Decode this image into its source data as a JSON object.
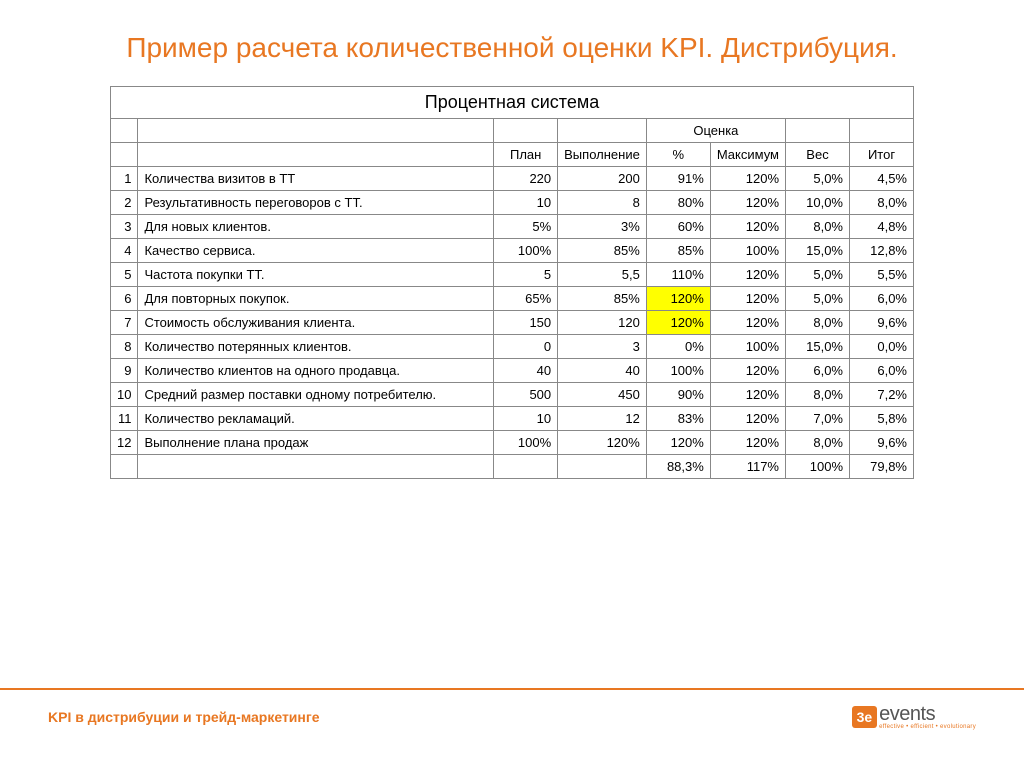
{
  "title": "Пример расчета количественной оценки KPI. Дистрибуция.",
  "table": {
    "main_title": "Процентная система",
    "group_header": "Оценка",
    "headers": {
      "plan": "План",
      "exec": "Выполнение",
      "pct": "%",
      "max": "Максимум",
      "weight": "Вес",
      "total": "Итог"
    },
    "rows": [
      {
        "n": "1",
        "name": "Количества визитов в ТТ",
        "plan": "220",
        "exec": "200",
        "pct": "91%",
        "max": "120%",
        "weight": "5,0%",
        "total": "4,5%",
        "hl": false
      },
      {
        "n": "2",
        "name": "Результативность переговоров с ТТ.",
        "plan": "10",
        "exec": "8",
        "pct": "80%",
        "max": "120%",
        "weight": "10,0%",
        "total": "8,0%",
        "hl": false
      },
      {
        "n": "3",
        "name": "Для новых клиентов.",
        "plan": "5%",
        "exec": "3%",
        "pct": "60%",
        "max": "120%",
        "weight": "8,0%",
        "total": "4,8%",
        "hl": false
      },
      {
        "n": "4",
        "name": "Качество сервиса.",
        "plan": "100%",
        "exec": "85%",
        "pct": "85%",
        "max": "100%",
        "weight": "15,0%",
        "total": "12,8%",
        "hl": false
      },
      {
        "n": "5",
        "name": "Частота покупки ТТ.",
        "plan": "5",
        "exec": "5,5",
        "pct": "110%",
        "max": "120%",
        "weight": "5,0%",
        "total": "5,5%",
        "hl": false
      },
      {
        "n": "6",
        "name": "Для повторных покупок.",
        "plan": "65%",
        "exec": "85%",
        "pct": "120%",
        "max": "120%",
        "weight": "5,0%",
        "total": "6,0%",
        "hl": true
      },
      {
        "n": "7",
        "name": "Стоимость обслуживания клиента.",
        "plan": "150",
        "exec": "120",
        "pct": "120%",
        "max": "120%",
        "weight": "8,0%",
        "total": "9,6%",
        "hl": true
      },
      {
        "n": "8",
        "name": "Количество потерянных клиентов.",
        "plan": "0",
        "exec": "3",
        "pct": "0%",
        "max": "100%",
        "weight": "15,0%",
        "total": "0,0%",
        "hl": false
      },
      {
        "n": "9",
        "name": "Количество клиентов на одного продавца.",
        "plan": "40",
        "exec": "40",
        "pct": "100%",
        "max": "120%",
        "weight": "6,0%",
        "total": "6,0%",
        "hl": false
      },
      {
        "n": "10",
        "name": "Средний размер поставки одному потребителю.",
        "plan": "500",
        "exec": "450",
        "pct": "90%",
        "max": "120%",
        "weight": "8,0%",
        "total": "7,2%",
        "hl": false
      },
      {
        "n": "11",
        "name": "Количество рекламаций.",
        "plan": "10",
        "exec": "12",
        "pct": "83%",
        "max": "120%",
        "weight": "7,0%",
        "total": "5,8%",
        "hl": false
      },
      {
        "n": "12",
        "name": "Выполнение плана продаж",
        "plan": "100%",
        "exec": "120%",
        "pct": "120%",
        "max": "120%",
        "weight": "8,0%",
        "total": "9,6%",
        "hl": false
      }
    ],
    "summary": {
      "pct": "88,3%",
      "max": "117%",
      "weight": "100%",
      "total": "79,8%"
    },
    "highlight_color": "#ffff00"
  },
  "footer": {
    "text": "KPI в дистрибуции и трейд-маркетинге",
    "logo_badge": "3e",
    "logo_main": "events",
    "logo_sub": "effective • efficient • evolutionary"
  },
  "colors": {
    "accent": "#e87722",
    "border": "#888888",
    "background": "#ffffff"
  }
}
